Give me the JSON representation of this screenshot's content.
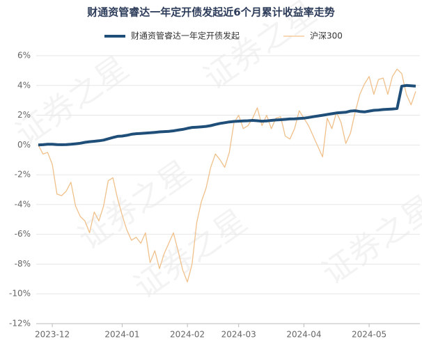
{
  "chart_data": {
    "type": "line",
    "title": "财通资管睿达一年定开债发起近6个月累计收益率走势",
    "watermark": "证券之星",
    "categories": [
      null,
      null,
      null,
      "2023-12",
      null,
      null,
      null,
      null,
      null,
      null,
      null,
      null,
      null,
      null,
      null,
      null,
      null,
      null,
      "2024-01",
      null,
      null,
      null,
      null,
      null,
      null,
      null,
      null,
      null,
      null,
      null,
      null,
      null,
      "2024-02",
      null,
      null,
      null,
      null,
      null,
      null,
      null,
      null,
      null,
      null,
      "2024-03",
      null,
      null,
      null,
      null,
      null,
      null,
      null,
      null,
      null,
      null,
      null,
      null,
      null,
      "2024-04",
      null,
      null,
      null,
      null,
      null,
      null,
      null,
      null,
      null,
      null,
      null,
      null,
      null,
      "2024-05",
      null,
      null,
      null,
      null,
      null,
      null,
      null,
      null,
      null,
      null
    ],
    "series": [
      {
        "name": "财通资管睿达一年定开债发起",
        "color": "#1f4e79",
        "width": 4,
        "values": [
          0,
          0.02,
          0.05,
          0.05,
          0.03,
          0.02,
          0.03,
          0.05,
          0.08,
          0.12,
          0.18,
          0.22,
          0.25,
          0.28,
          0.33,
          0.42,
          0.5,
          0.58,
          0.6,
          0.65,
          0.72,
          0.76,
          0.78,
          0.8,
          0.82,
          0.85,
          0.88,
          0.9,
          0.92,
          0.95,
          1.0,
          1.05,
          1.12,
          1.18,
          1.2,
          1.22,
          1.25,
          1.3,
          1.38,
          1.45,
          1.5,
          1.55,
          1.58,
          1.6,
          1.62,
          1.63,
          1.65,
          1.63,
          1.6,
          1.62,
          1.65,
          1.68,
          1.7,
          1.72,
          1.75,
          1.76,
          1.78,
          1.8,
          1.85,
          1.9,
          1.95,
          2.0,
          2.05,
          2.1,
          2.15,
          2.18,
          2.2,
          2.28,
          2.3,
          2.25,
          2.22,
          2.28,
          2.33,
          2.35,
          2.38,
          2.4,
          2.42,
          2.45,
          3.95,
          4.0,
          3.98,
          3.95
        ]
      },
      {
        "name": "沪深300",
        "color": "#f0c08a",
        "width": 1.3,
        "values": [
          0,
          -0.6,
          -0.5,
          -1.3,
          -3.3,
          -3.4,
          -3.1,
          -2.5,
          -4.1,
          -4.8,
          -5.1,
          -5.9,
          -4.5,
          -5.1,
          -4.1,
          -2.4,
          -2.2,
          -3.6,
          -4.7,
          -5.7,
          -6.4,
          -6.2,
          -6.6,
          -5.9,
          -7.9,
          -7.1,
          -8.3,
          -7.3,
          -6.6,
          -5.9,
          -7.1,
          -8.4,
          -9.2,
          -8.0,
          -5.2,
          -3.8,
          -2.9,
          -1.5,
          -0.6,
          -1.0,
          -1.5,
          -0.5,
          1.5,
          2.0,
          1.1,
          1.3,
          1.8,
          2.5,
          1.3,
          2.0,
          1.1,
          1.8,
          1.9,
          0.6,
          0.4,
          1.1,
          2.3,
          1.8,
          1.3,
          0.6,
          -0.1,
          -0.8,
          1.8,
          1.1,
          2.2,
          1.5,
          0.1,
          0.8,
          2.2,
          3.4,
          4.1,
          4.6,
          3.4,
          4.4,
          4.5,
          3.4,
          4.6,
          5.1,
          4.8,
          3.4,
          2.7,
          3.6
        ]
      }
    ],
    "ylim": [
      -12,
      6
    ],
    "yticks": [
      {
        "value": -12,
        "label": "-12%"
      },
      {
        "value": -10,
        "label": "-10%"
      },
      {
        "value": -8,
        "label": "-8%"
      },
      {
        "value": -6,
        "label": "-6%"
      },
      {
        "value": -4,
        "label": "-4%"
      },
      {
        "value": -2,
        "label": "-2%"
      },
      {
        "value": 0,
        "label": "0%"
      },
      {
        "value": 2,
        "label": "2%"
      },
      {
        "value": 4,
        "label": "4%"
      },
      {
        "value": 6,
        "label": "6%"
      }
    ],
    "grid": true,
    "legend": "top"
  }
}
